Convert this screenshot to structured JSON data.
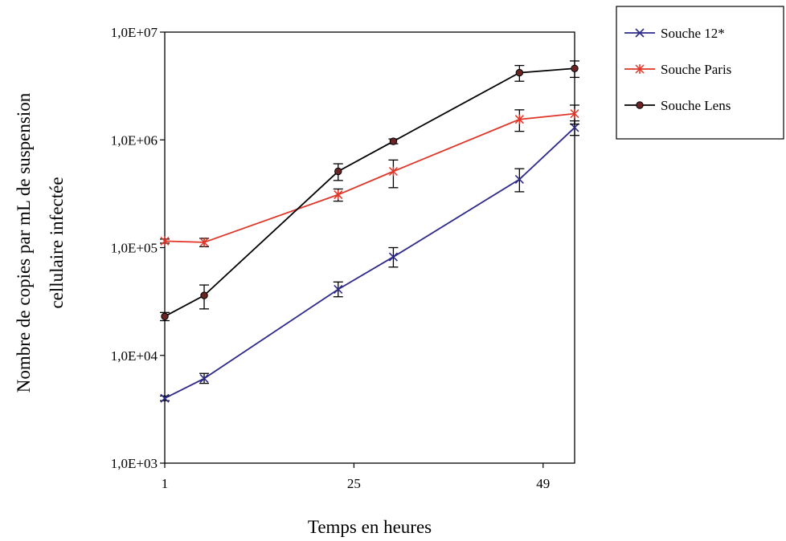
{
  "chart_data": {
    "type": "line",
    "title": "",
    "xlabel": "Temps en heures",
    "ylabel": [
      "Nombre de copies par mL de suspension",
      "cellulaire infectée"
    ],
    "y_scale": "log",
    "ylim": [
      1000,
      10000000
    ],
    "xlim": [
      1,
      53
    ],
    "x_ticks": [
      1,
      25,
      49
    ],
    "x_tick_labels": [
      "1",
      "25",
      "49"
    ],
    "y_ticks": [
      1000,
      10000,
      100000,
      1000000,
      10000000
    ],
    "y_tick_labels": [
      "1,0E+03",
      "1,0E+04",
      "1,0E+05",
      "1,0E+06",
      "1,0E+07"
    ],
    "grid": false,
    "legend_position": "top-right",
    "series": [
      {
        "name": "Souche 12*",
        "color": "#2e2a8c",
        "marker": "x",
        "x": [
          1,
          6,
          23,
          30,
          46,
          53
        ],
        "y": [
          4000,
          6100,
          41000,
          82000,
          430000,
          1300000
        ],
        "y_err_low": [
          3800,
          5500,
          35000,
          66000,
          330000,
          1100000
        ],
        "y_err_high": [
          4200,
          6800,
          48000,
          100000,
          540000,
          1500000
        ]
      },
      {
        "name": "Souche Paris",
        "color": "#e03527",
        "marker": "asterisk",
        "x": [
          1,
          6,
          23,
          30,
          46,
          53
        ],
        "y": [
          115000,
          112000,
          310000,
          510000,
          1550000,
          1750000
        ],
        "y_err_low": [
          110000,
          102000,
          270000,
          360000,
          1200000,
          1400000
        ],
        "y_err_high": [
          120000,
          122000,
          350000,
          650000,
          1900000,
          2100000
        ]
      },
      {
        "name": "Souche Lens",
        "color": "#000000",
        "marker_fill": "#6b2424",
        "marker": "circle",
        "x": [
          1,
          6,
          23,
          30,
          46,
          53
        ],
        "y": [
          23000,
          36000,
          510000,
          970000,
          4200000,
          4600000
        ],
        "y_err_low": [
          21000,
          27000,
          420000,
          920000,
          3500000,
          3800000
        ],
        "y_err_high": [
          25000,
          45000,
          600000,
          1020000,
          4900000,
          5400000
        ]
      }
    ]
  }
}
